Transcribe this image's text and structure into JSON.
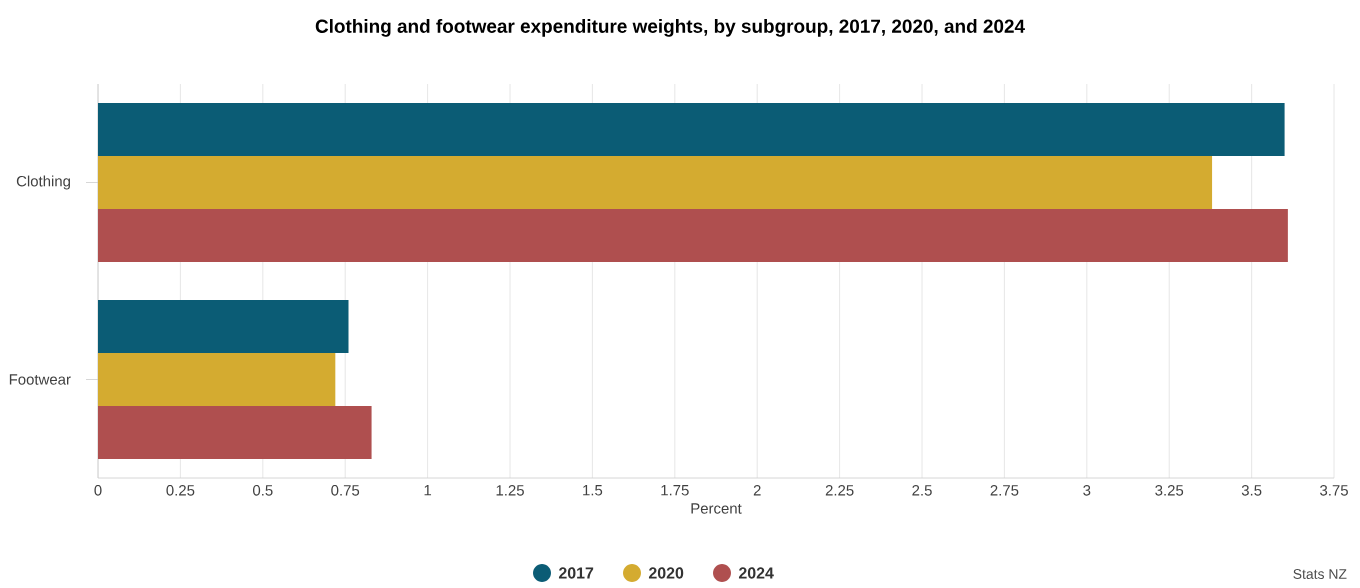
{
  "chart_data": {
    "type": "bar",
    "orientation": "horizontal",
    "title": "Clothing and footwear expenditure weights, by subgroup, 2017, 2020, and 2024",
    "xlabel": "Percent",
    "categories": [
      "Clothing",
      "Footwear"
    ],
    "series": [
      {
        "name": "2017",
        "color": "#0b5c75",
        "values": [
          3.6,
          0.76
        ]
      },
      {
        "name": "2020",
        "color": "#d4ab30",
        "values": [
          3.38,
          0.72
        ]
      },
      {
        "name": "2024",
        "color": "#af4f4f",
        "values": [
          3.61,
          0.83
        ]
      }
    ],
    "xlim": [
      0,
      3.75
    ],
    "xticks": [
      0,
      0.25,
      0.5,
      0.75,
      1,
      1.25,
      1.5,
      1.75,
      2,
      2.25,
      2.5,
      2.75,
      3,
      3.25,
      3.5,
      3.75
    ],
    "grid": "x",
    "legend": "bottom",
    "annotations": [
      "Stats NZ"
    ]
  }
}
